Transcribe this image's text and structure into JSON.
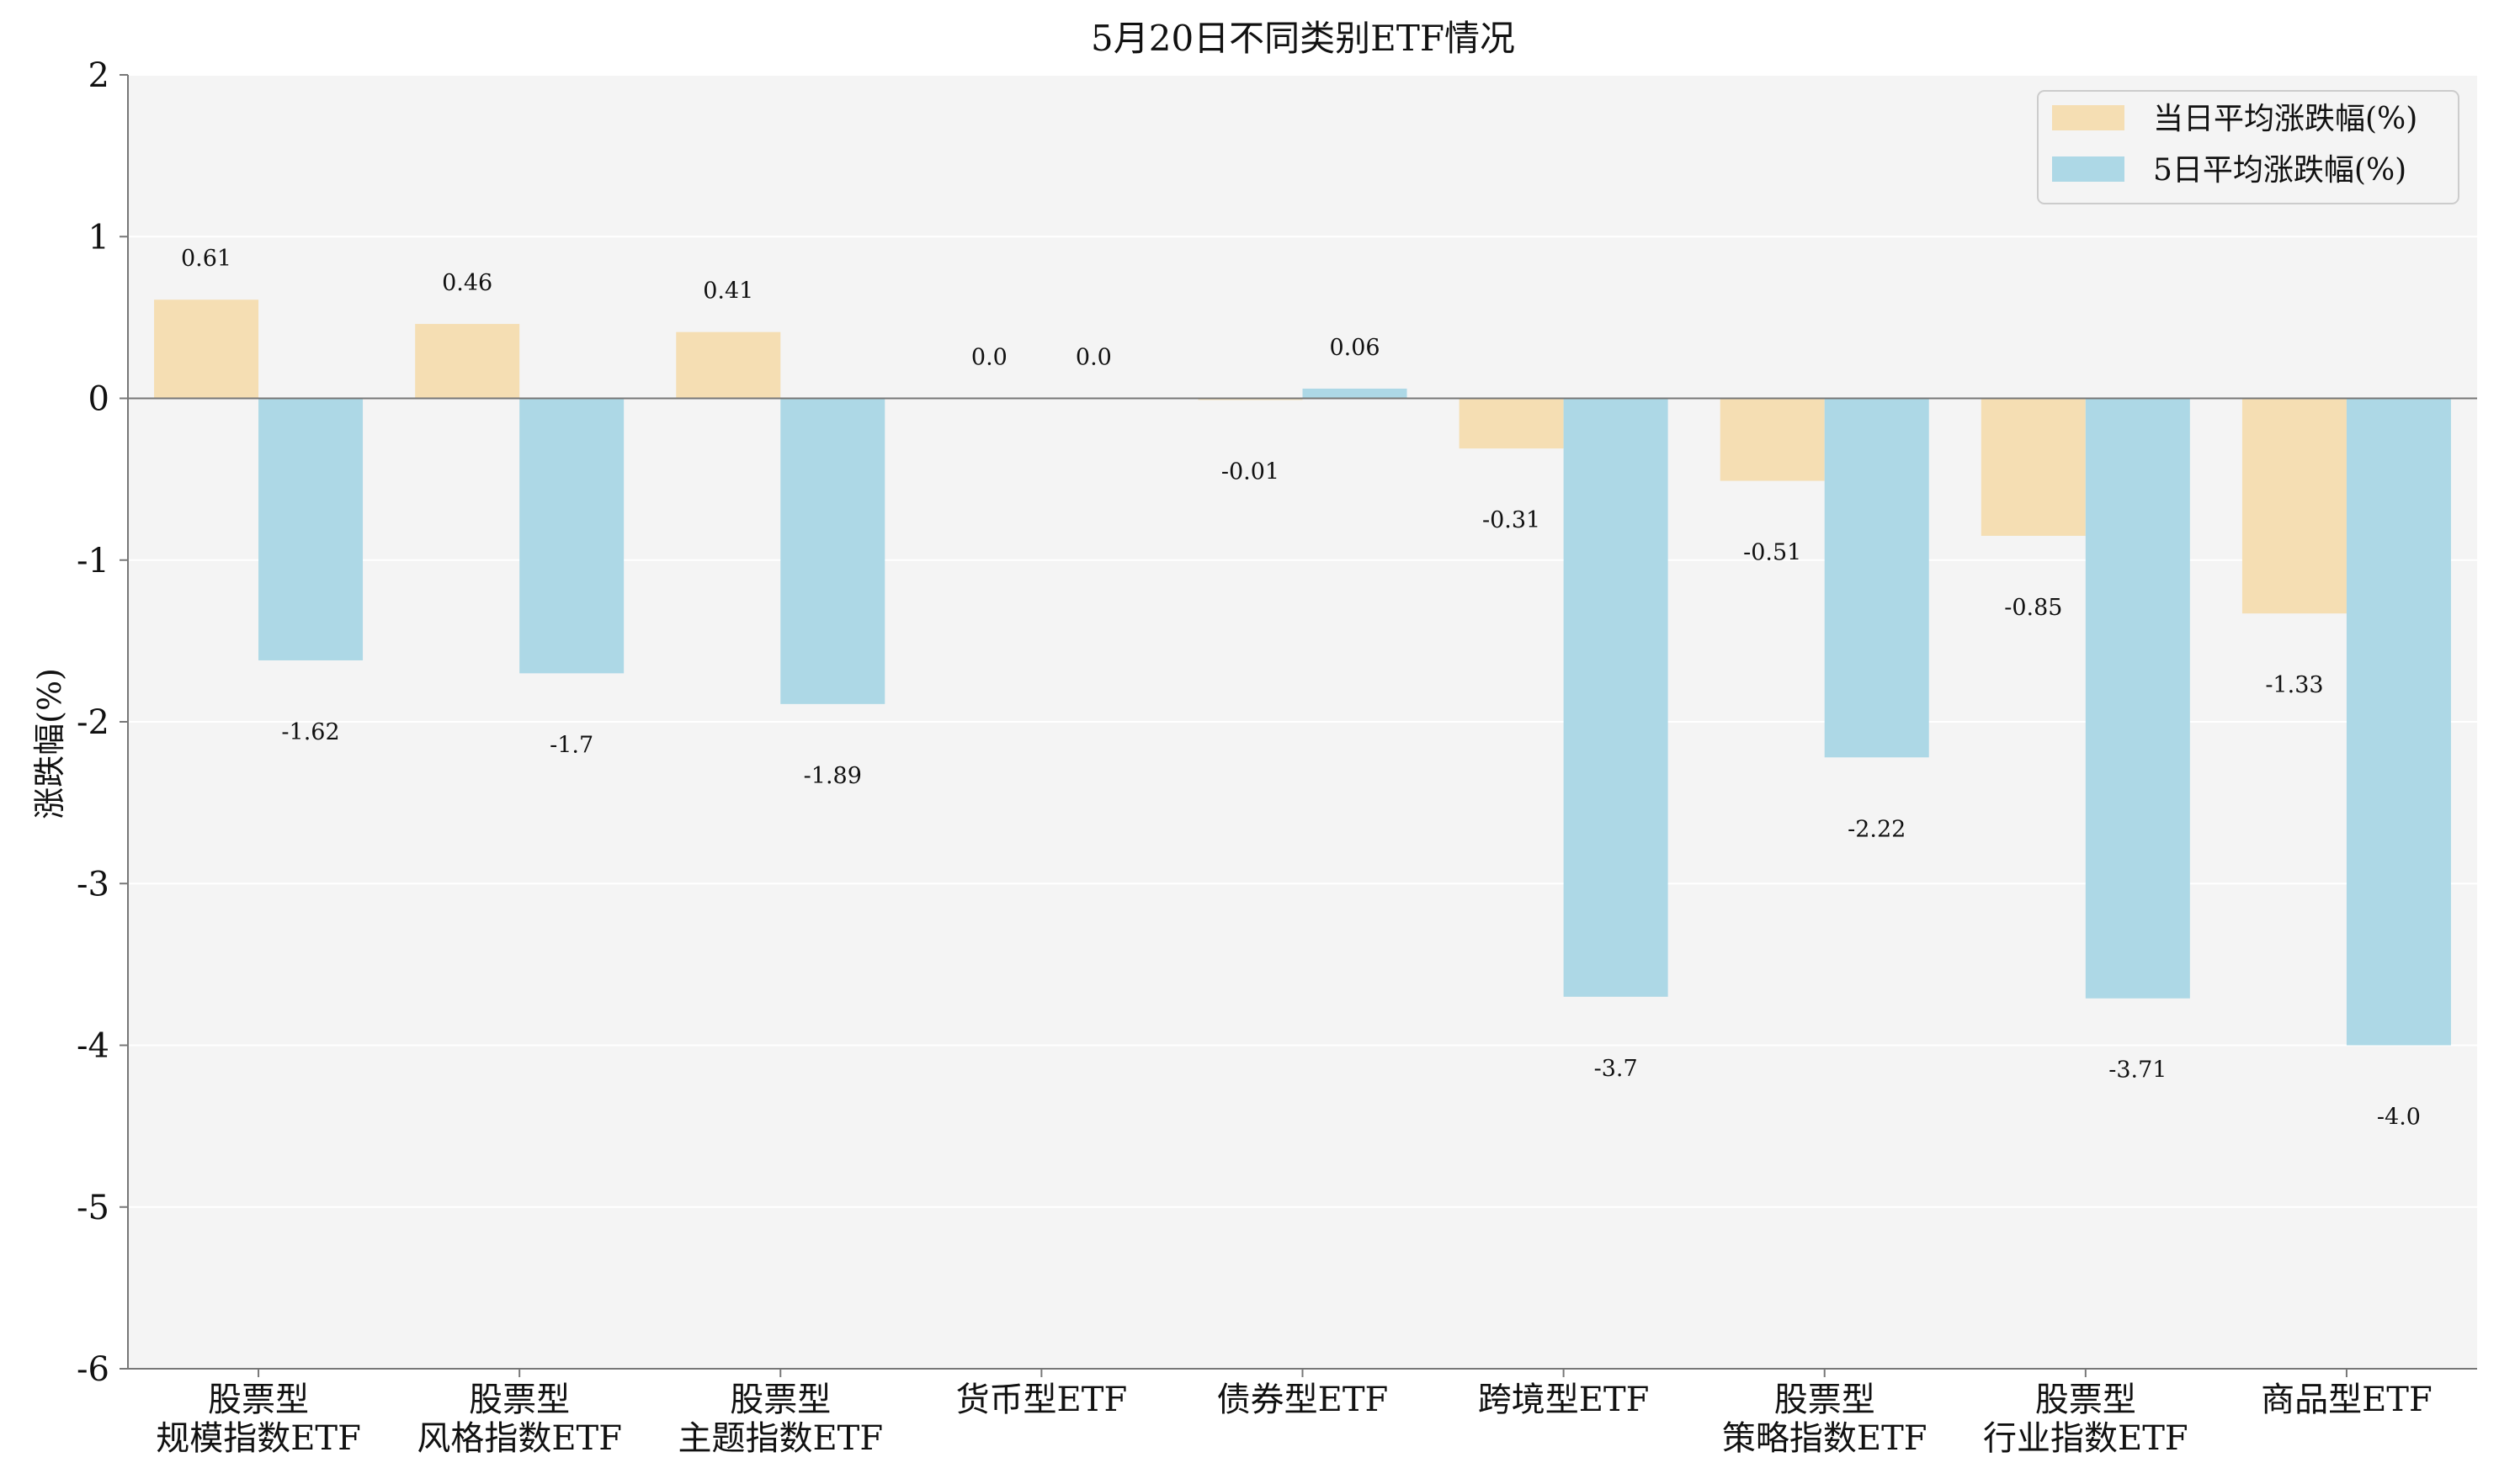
{
  "chart_data": {
    "type": "bar",
    "title": "5月20日不同类别ETF情况",
    "ylabel": "涨跌幅(%)",
    "xlabel": "",
    "ylim": [
      -6,
      2
    ],
    "yticks": [
      2,
      1,
      0,
      -1,
      -2,
      -3,
      -4,
      -5,
      -6
    ],
    "grid": true,
    "legend_position": "top-right",
    "categories": [
      [
        "股票型",
        "规模指数ETF"
      ],
      [
        "股票型",
        "风格指数ETF"
      ],
      [
        "股票型",
        "主题指数ETF"
      ],
      [
        "货币型ETF"
      ],
      [
        "债券型ETF"
      ],
      [
        "跨境型ETF"
      ],
      [
        "股票型",
        "策略指数ETF"
      ],
      [
        "股票型",
        "行业指数ETF"
      ],
      [
        "商品型ETF"
      ]
    ],
    "series": [
      {
        "name": "当日平均涨跌幅(%)",
        "color": "#f5deb3",
        "values": [
          0.61,
          0.46,
          0.41,
          0.0,
          -0.01,
          -0.31,
          -0.51,
          -0.85,
          -1.33
        ],
        "labels": [
          "0.61",
          "0.46",
          "0.41",
          "0.0",
          "-0.01",
          "-0.31",
          "-0.51",
          "-0.85",
          "-1.33"
        ]
      },
      {
        "name": "5日平均涨跌幅(%)",
        "color": "#add8e6",
        "values": [
          -1.62,
          -1.7,
          -1.89,
          0.0,
          0.06,
          -3.7,
          -2.22,
          -3.71,
          -4.0
        ],
        "labels": [
          "-1.62",
          "-1.7",
          "-1.89",
          "0.0",
          "0.06",
          "-3.7",
          "-2.22",
          "-3.71",
          "-4.0"
        ]
      }
    ],
    "colors": {
      "plot_background": "#f4f4f4",
      "grid": "#ffffff",
      "axis": "#777777",
      "zero_line": "#777777"
    }
  }
}
